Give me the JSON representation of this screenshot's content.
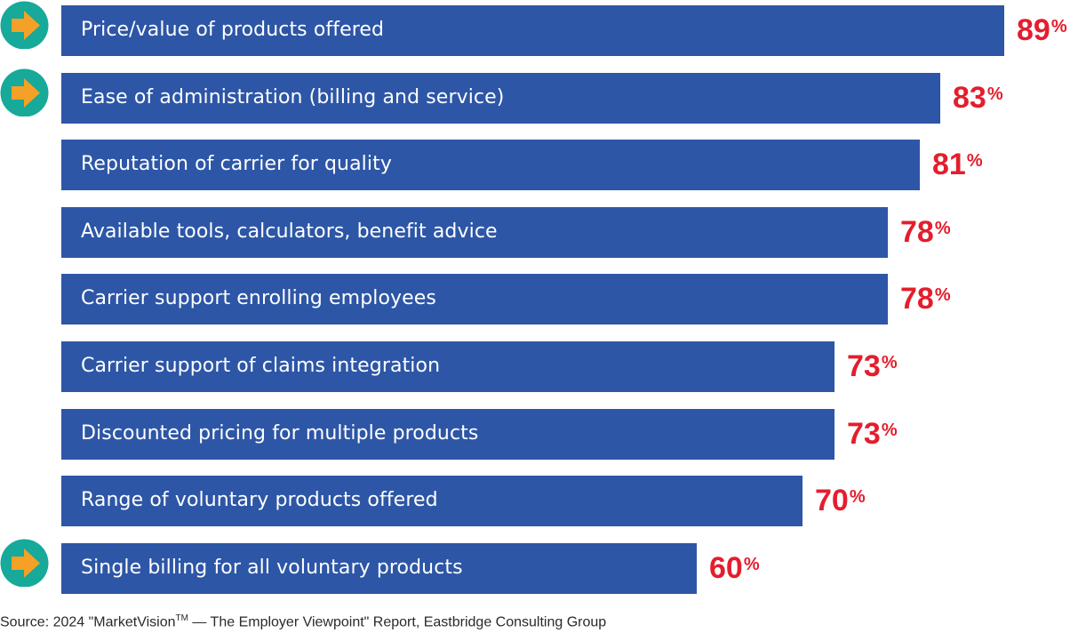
{
  "chart_data": {
    "type": "bar",
    "orientation": "horizontal",
    "title": "",
    "xlabel": "",
    "ylabel": "",
    "xlim": [
      0,
      89
    ],
    "grid": false,
    "categories": [
      "Price/value of products offered",
      "Ease of administration (billing and service)",
      "Reputation of carrier for quality",
      "Available tools, calculators, benefit advice",
      "Carrier support enrolling employees",
      "Carrier support of claims integration",
      "Discounted pricing for multiple products",
      "Range of voluntary products offered",
      "Single billing for all voluntary products"
    ],
    "values": [
      89,
      83,
      81,
      78,
      78,
      73,
      73,
      70,
      60
    ],
    "value_suffix": "%",
    "highlighted": [
      true,
      true,
      false,
      false,
      false,
      false,
      false,
      false,
      true
    ],
    "highlight_icon": "arrow-right-in-circle-icon",
    "colors": {
      "bar": "#2d56a6",
      "bar_text": "#ffffff",
      "value_text": "#e31e2d",
      "marker_circle": "#17a99a",
      "marker_arrow": "#f5a026"
    }
  },
  "source": {
    "prefix": "Source: 2024 \"MarketVision",
    "tm": "TM",
    "suffix": " — The Employer Viewpoint\" Report, Eastbridge Consulting Group"
  }
}
